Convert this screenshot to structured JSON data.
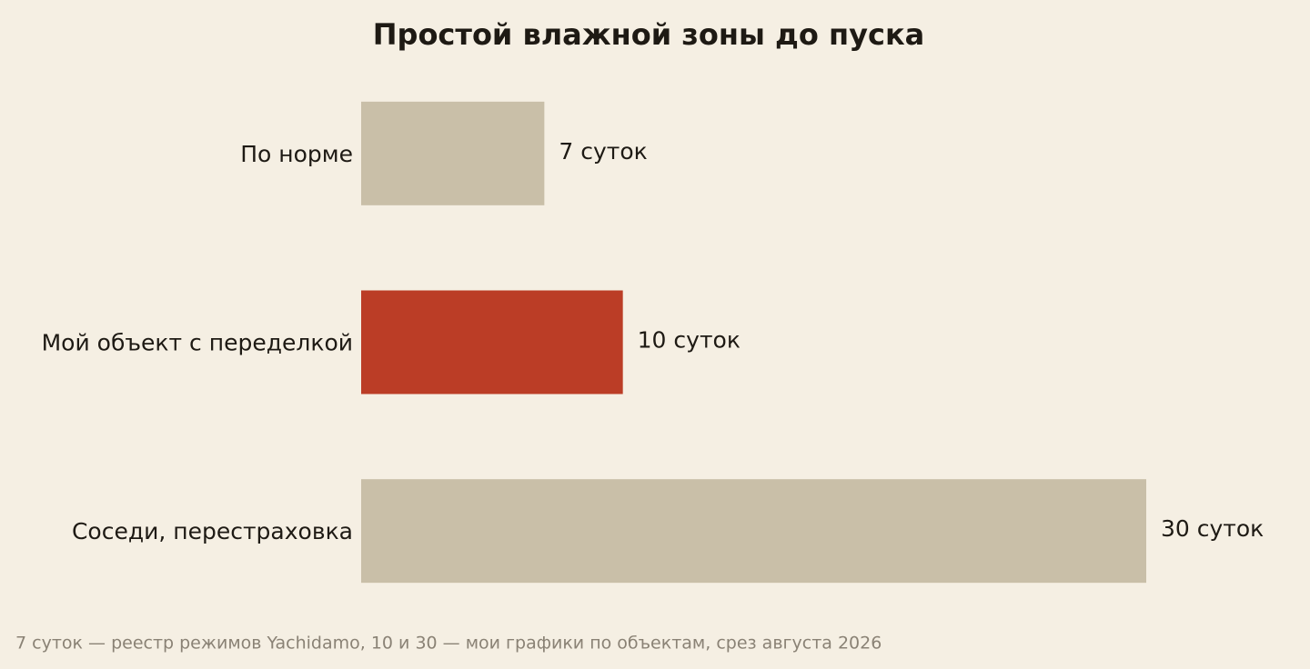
{
  "chart_data": {
    "type": "barh",
    "title": "Простой влажной зоны до пуска",
    "categories": [
      "По норме",
      "Мой объект с переделкой",
      "Соседи, перестраховка"
    ],
    "values": [
      7,
      10,
      30
    ],
    "value_labels": [
      "7 суток",
      "10 суток",
      "30 суток"
    ],
    "colors": [
      "#c9bfa8",
      "#bb3d26",
      "#c9bfa8"
    ],
    "footnote": "7 суток — реестр режимов Yachidamo, 10 и 30 — мои графики по объектам, срез августа 2026"
  }
}
